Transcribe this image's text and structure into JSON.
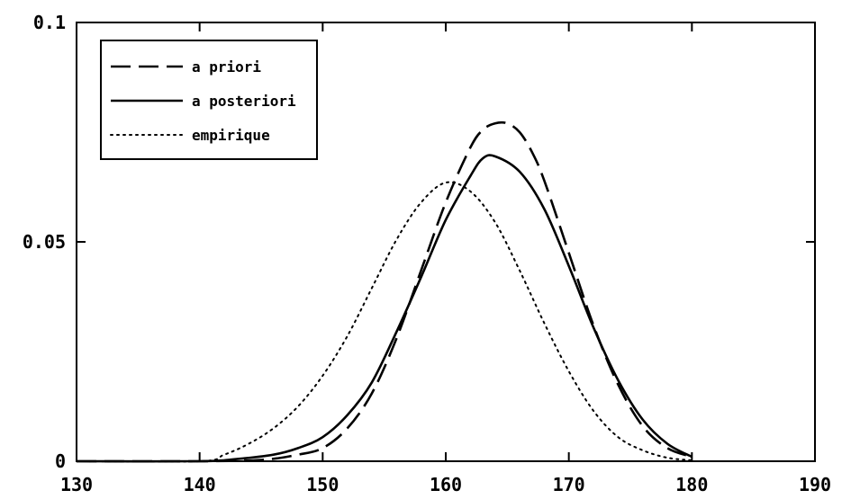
{
  "chart_data": {
    "type": "line",
    "title": "",
    "xlabel": "",
    "ylabel": "",
    "xlim": [
      130,
      190
    ],
    "ylim": [
      0,
      0.1
    ],
    "x_ticks": [
      130,
      140,
      150,
      160,
      170,
      180,
      190
    ],
    "x_tick_labels": [
      "130",
      "140",
      "150",
      "160",
      "170",
      "180",
      "190"
    ],
    "y_ticks": [
      0,
      0.05,
      0.1
    ],
    "y_tick_labels": [
      "0",
      "0.05",
      "0.1"
    ],
    "grid": false,
    "legend_position": "top-left",
    "series": [
      {
        "name": "a priori",
        "style": "dashed",
        "color": "#000000",
        "x": [
          130,
          140,
          145,
          148,
          150,
          152,
          154,
          156,
          158,
          160,
          162,
          163,
          164,
          165,
          166,
          167,
          168,
          170,
          172,
          174,
          176,
          178,
          180
        ],
        "y": [
          0,
          0,
          0.0003,
          0.0015,
          0.003,
          0.0075,
          0.0155,
          0.028,
          0.0435,
          0.059,
          0.0715,
          0.0755,
          0.077,
          0.077,
          0.075,
          0.0705,
          0.064,
          0.0475,
          0.031,
          0.0175,
          0.008,
          0.003,
          0.001
        ]
      },
      {
        "name": "a posteriori",
        "style": "solid",
        "color": "#000000",
        "x": [
          130,
          140,
          143,
          146,
          148,
          150,
          152,
          154,
          156,
          158,
          160,
          162,
          163,
          164,
          166,
          168,
          170,
          172,
          174,
          176,
          178,
          180
        ],
        "y": [
          0,
          0,
          0.0005,
          0.0015,
          0.003,
          0.0055,
          0.0105,
          0.018,
          0.0295,
          0.042,
          0.055,
          0.065,
          0.069,
          0.0695,
          0.066,
          0.0575,
          0.0445,
          0.0305,
          0.0185,
          0.0095,
          0.004,
          0.001
        ]
      },
      {
        "name": "empirique",
        "style": "dotted",
        "color": "#000000",
        "x": [
          130,
          140,
          142,
          144,
          146,
          148,
          150,
          152,
          154,
          156,
          158,
          160,
          162,
          164,
          166,
          168,
          170,
          172,
          174,
          176,
          178,
          180
        ],
        "y": [
          0,
          0,
          0.0015,
          0.004,
          0.0075,
          0.0125,
          0.0195,
          0.0285,
          0.0395,
          0.0505,
          0.059,
          0.0635,
          0.0615,
          0.0545,
          0.0435,
          0.0315,
          0.0205,
          0.0115,
          0.0055,
          0.0025,
          0.0008,
          0.0002
        ]
      }
    ]
  }
}
